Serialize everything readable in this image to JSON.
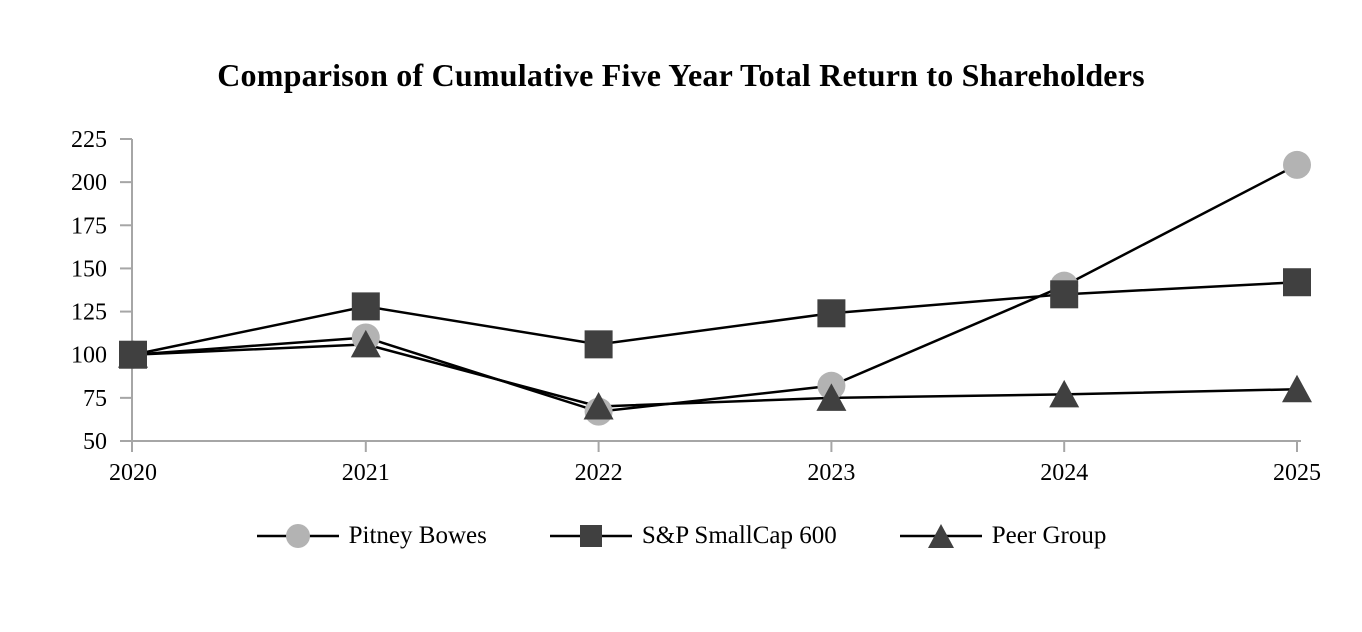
{
  "chart_data": {
    "type": "line",
    "title": "Comparison of Cumulative Five Year Total Return to Shareholders",
    "x": [
      "2020",
      "2021",
      "2022",
      "2023",
      "2024",
      "2025"
    ],
    "series": [
      {
        "name": "Pitney Bowes",
        "marker": "circle",
        "marker_color": "#b3b3b3",
        "values": [
          100,
          110,
          67,
          82,
          140,
          210
        ]
      },
      {
        "name": "S&P SmallCap 600",
        "marker": "square",
        "marker_color": "#404040",
        "values": [
          100,
          128,
          106,
          124,
          135,
          142
        ]
      },
      {
        "name": "Peer Group",
        "marker": "triangle",
        "marker_color": "#404040",
        "values": [
          100,
          106,
          70,
          75,
          77,
          80
        ]
      }
    ],
    "ylim": [
      50,
      225
    ],
    "yticks": [
      50,
      75,
      100,
      125,
      150,
      175,
      200,
      225
    ],
    "xlabel": "",
    "ylabel": "",
    "grid": false,
    "legend_position": "bottom",
    "line_color": "#000000",
    "axis_color": "#a6a6a6",
    "text_color": "#000000"
  }
}
